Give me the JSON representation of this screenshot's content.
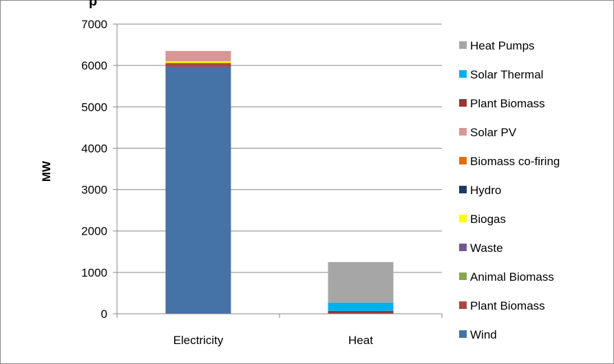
{
  "chart_data": {
    "type": "bar",
    "stacked": true,
    "title_fragment": "p",
    "xlabel": "",
    "ylabel": "MW",
    "ylim": [
      0,
      7000
    ],
    "yticks": [
      0,
      1000,
      2000,
      3000,
      4000,
      5000,
      6000,
      7000
    ],
    "grid": true,
    "legend_position": "right",
    "categories": [
      "Electricity",
      "Heat"
    ],
    "series": [
      {
        "name": "Wind",
        "color": "#4572A7",
        "values": [
          5970,
          0
        ]
      },
      {
        "name": "Plant Biomass",
        "color": "#AA4643",
        "values": [
          90,
          0
        ]
      },
      {
        "name": "Animal Biomass",
        "color": "#89A54E",
        "values": [
          0,
          0
        ]
      },
      {
        "name": "Waste",
        "color": "#71588F",
        "values": [
          0,
          0
        ]
      },
      {
        "name": "Biogas",
        "color": "#FFFF00",
        "values": [
          40,
          0
        ]
      },
      {
        "name": "Hydro",
        "color": "#1F3A5F",
        "values": [
          0,
          0
        ]
      },
      {
        "name": "Biomass co-firing",
        "color": "#E36C09",
        "values": [
          0,
          0
        ]
      },
      {
        "name": "Solar PV",
        "color": "#D99694",
        "values": [
          250,
          0
        ]
      },
      {
        "name": "Plant Biomass",
        "color": "#953735",
        "values": [
          0,
          70
        ]
      },
      {
        "name": "Solar Thermal",
        "color": "#00B0F0",
        "values": [
          0,
          200
        ]
      },
      {
        "name": "Heat Pumps",
        "color": "#A6A6A6",
        "values": [
          0,
          980
        ]
      }
    ]
  }
}
